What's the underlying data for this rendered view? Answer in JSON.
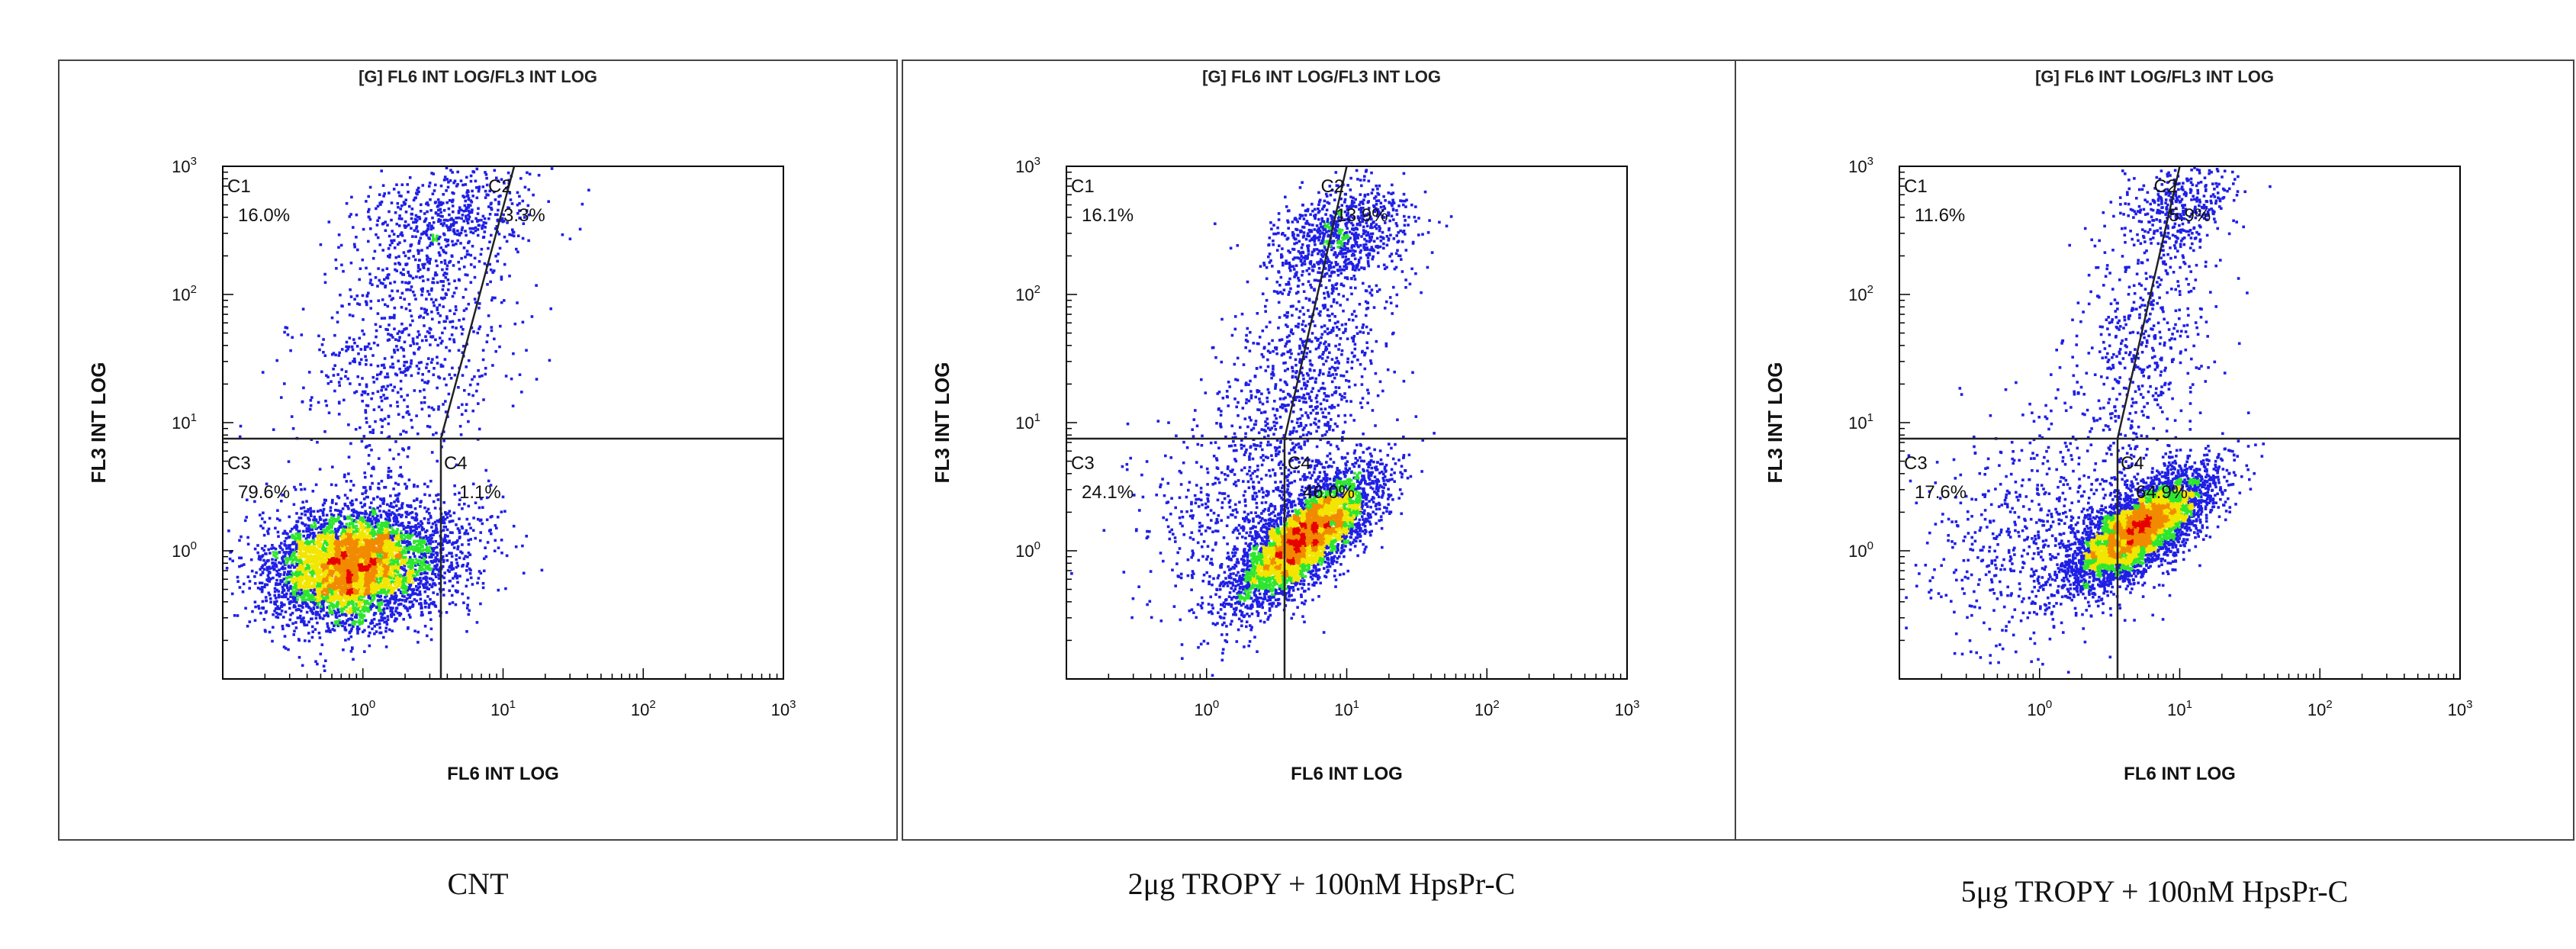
{
  "colors": {
    "density_low": "#1f1fe6",
    "density_mid": "#2ee62e",
    "density_high": "#f2e600",
    "density_peak": "#e60000",
    "frame": "#444444"
  },
  "chart_data": [
    {
      "type": "scatter",
      "subtype": "flow-cytometry-density-dotplot",
      "title": "[G] FL6 INT LOG/FL3 INT LOG",
      "xlabel": "FL6 INT LOG",
      "ylabel": "FL3 INT LOG",
      "x_scale": "log",
      "y_scale": "log",
      "xlim": [
        0.1,
        1000
      ],
      "ylim": [
        0.1,
        1000
      ],
      "x_ticks": [
        {
          "base": "10",
          "exp": "0"
        },
        {
          "base": "10",
          "exp": "1"
        },
        {
          "base": "10",
          "exp": "2"
        },
        {
          "base": "10",
          "exp": "3"
        }
      ],
      "y_ticks": [
        {
          "base": "10",
          "exp": "0"
        },
        {
          "base": "10",
          "exp": "1"
        },
        {
          "base": "10",
          "exp": "2"
        },
        {
          "base": "10",
          "exp": "3"
        }
      ],
      "gate": {
        "x_split": 3.6,
        "y_split": 7.5,
        "upper_line_top_x": 12
      },
      "quadrants": [
        {
          "id": "C1",
          "value": "16.0%"
        },
        {
          "id": "C2",
          "value": "3.3%"
        },
        {
          "id": "C3",
          "value": "79.6%"
        },
        {
          "id": "C4",
          "value": "1.1%"
        }
      ],
      "populations": [
        {
          "cx": 0.85,
          "cy": 0.8,
          "sx": 0.3,
          "sy": 0.23,
          "rho": 0.15,
          "weight": 0.78
        },
        {
          "cx": 4.0,
          "cy": 400,
          "sx": 0.32,
          "sy": 0.25,
          "rho": 0.3,
          "weight": 0.09
        },
        {
          "cx": 2.0,
          "cy": 40,
          "sx": 0.38,
          "sy": 0.5,
          "rho": 0.2,
          "weight": 0.11
        },
        {
          "cx": 5.0,
          "cy": 1.0,
          "sx": 0.22,
          "sy": 0.25,
          "rho": 0.2,
          "weight": 0.02
        }
      ],
      "caption": "CNT"
    },
    {
      "type": "scatter",
      "subtype": "flow-cytometry-density-dotplot",
      "title": "[G] FL6 INT LOG/FL3 INT LOG",
      "xlabel": "FL6 INT LOG",
      "ylabel": "FL3 INT LOG",
      "x_scale": "log",
      "y_scale": "log",
      "xlim": [
        0.1,
        1000
      ],
      "ylim": [
        0.1,
        1000
      ],
      "x_ticks": [
        {
          "base": "10",
          "exp": "0"
        },
        {
          "base": "10",
          "exp": "1"
        },
        {
          "base": "10",
          "exp": "2"
        },
        {
          "base": "10",
          "exp": "3"
        }
      ],
      "y_ticks": [
        {
          "base": "10",
          "exp": "0"
        },
        {
          "base": "10",
          "exp": "1"
        },
        {
          "base": "10",
          "exp": "2"
        },
        {
          "base": "10",
          "exp": "3"
        }
      ],
      "gate": {
        "x_split": 3.6,
        "y_split": 7.5,
        "upper_line_top_x": 10
      },
      "quadrants": [
        {
          "id": "C1",
          "value": "16.1%"
        },
        {
          "id": "C2",
          "value": "13.9%"
        },
        {
          "id": "C3",
          "value": "24.1%"
        },
        {
          "id": "C4",
          "value": "46.0%"
        }
      ],
      "populations": [
        {
          "cx": 5.0,
          "cy": 1.3,
          "sx": 0.25,
          "sy": 0.25,
          "rho": 0.75,
          "weight": 0.66
        },
        {
          "cx": 9.0,
          "cy": 300,
          "sx": 0.25,
          "sy": 0.2,
          "rho": 0.3,
          "weight": 0.12
        },
        {
          "cx": 5.0,
          "cy": 25,
          "sx": 0.28,
          "sy": 0.55,
          "rho": 0.4,
          "weight": 0.14
        },
        {
          "cx": 1.5,
          "cy": 2.0,
          "sx": 0.35,
          "sy": 0.45,
          "rho": 0.2,
          "weight": 0.08
        }
      ],
      "caption": "2μg TROPY + 100nM HpsPr-C"
    },
    {
      "type": "scatter",
      "subtype": "flow-cytometry-density-dotplot",
      "title": "[G] FL6 INT LOG/FL3 INT LOG",
      "xlabel": "FL6 INT LOG",
      "ylabel": "FL3 INT LOG",
      "x_scale": "log",
      "y_scale": "log",
      "xlim": [
        0.1,
        1000
      ],
      "ylim": [
        0.1,
        1000
      ],
      "x_ticks": [
        {
          "base": "10",
          "exp": "0"
        },
        {
          "base": "10",
          "exp": "1"
        },
        {
          "base": "10",
          "exp": "2"
        },
        {
          "base": "10",
          "exp": "3"
        }
      ],
      "y_ticks": [
        {
          "base": "10",
          "exp": "0"
        },
        {
          "base": "10",
          "exp": "1"
        },
        {
          "base": "10",
          "exp": "2"
        },
        {
          "base": "10",
          "exp": "3"
        }
      ],
      "gate": {
        "x_split": 3.6,
        "y_split": 7.5,
        "upper_line_top_x": 10
      },
      "quadrants": [
        {
          "id": "C1",
          "value": "11.6%"
        },
        {
          "id": "C2",
          "value": "5.9%"
        },
        {
          "id": "C3",
          "value": "17.6%"
        },
        {
          "id": "C4",
          "value": "64.9%"
        }
      ],
      "populations": [
        {
          "cx": 5.0,
          "cy": 1.5,
          "sx": 0.25,
          "sy": 0.22,
          "rho": 0.7,
          "weight": 0.76
        },
        {
          "cx": 10.0,
          "cy": 500,
          "sx": 0.2,
          "sy": 0.18,
          "rho": 0.3,
          "weight": 0.06
        },
        {
          "cx": 5.0,
          "cy": 40,
          "sx": 0.25,
          "sy": 0.55,
          "rho": 0.3,
          "weight": 0.08
        },
        {
          "cx": 1.0,
          "cy": 1.5,
          "sx": 0.4,
          "sy": 0.45,
          "rho": 0.2,
          "weight": 0.1
        }
      ],
      "caption": "5μg TROPY + 100nM HpsPr-C"
    }
  ]
}
